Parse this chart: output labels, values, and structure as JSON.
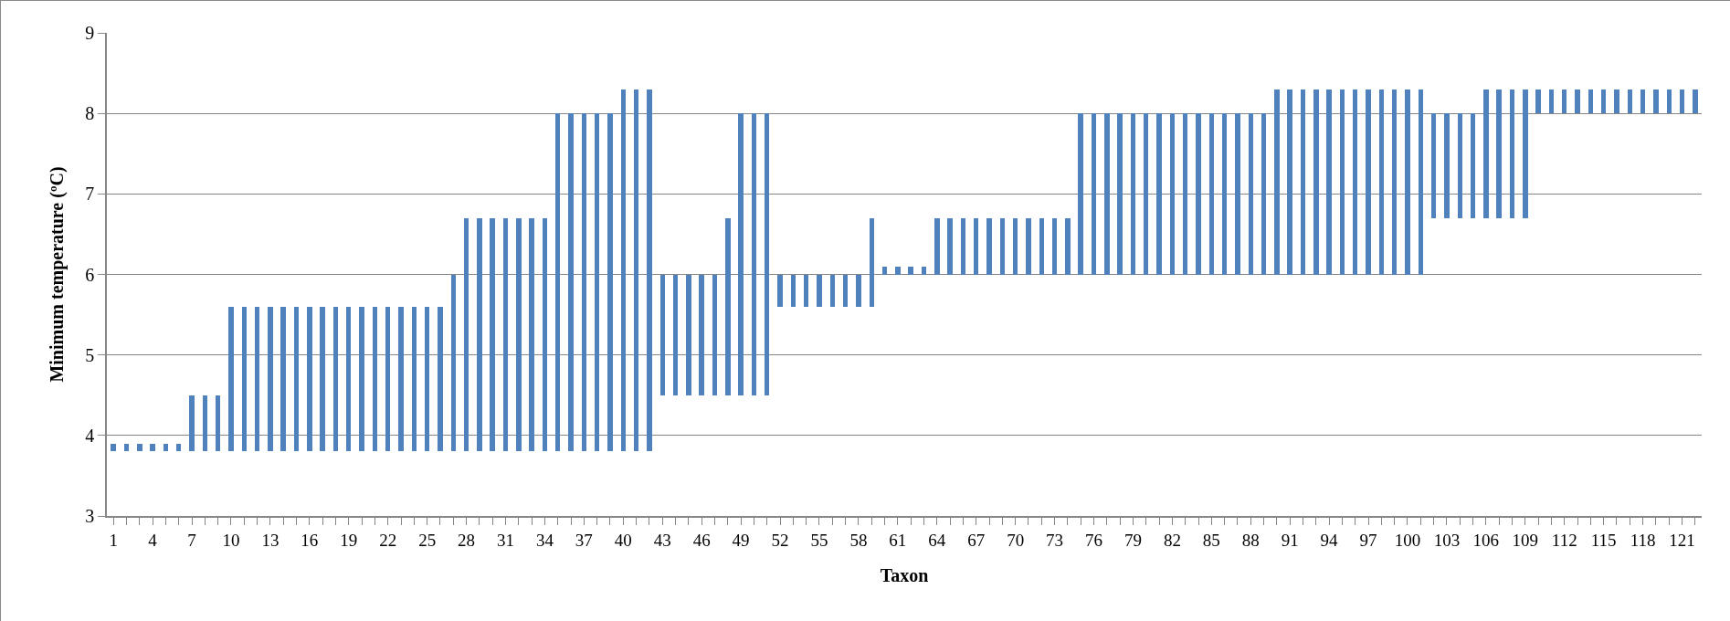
{
  "chart_data": {
    "type": "bar",
    "xlabel": "Taxon",
    "ylabel": "Minimum temperature (ºC)",
    "categories": [
      "1",
      null,
      null,
      "4",
      null,
      null,
      "7",
      null,
      null,
      "10",
      null,
      null,
      "13",
      null,
      null,
      "16",
      null,
      null,
      "19",
      null,
      null,
      "22",
      null,
      null,
      "25",
      null,
      null,
      "28",
      null,
      null,
      "31",
      null,
      null,
      "34",
      null,
      null,
      "37",
      null,
      null,
      "40",
      null,
      null,
      "43",
      null,
      null,
      "46",
      null,
      null,
      "49",
      null,
      null,
      "52",
      null,
      null,
      "55",
      null,
      null,
      "58",
      null,
      null,
      "61",
      null,
      null,
      "64",
      null,
      null,
      "67",
      null,
      null,
      "70",
      null,
      null,
      "73",
      null,
      null,
      "76",
      null,
      null,
      "79",
      null,
      null,
      "82",
      null,
      null,
      "85",
      null,
      null,
      "88",
      null,
      null,
      "91",
      null,
      null,
      "94",
      null,
      null,
      "97",
      null,
      null,
      "100",
      null,
      null,
      "103",
      null,
      null,
      "106",
      null,
      null,
      "109",
      null,
      null,
      "112",
      null,
      null,
      "115",
      null,
      null,
      "118",
      null,
      null,
      "121",
      null
    ],
    "base": [
      3.8,
      3.8,
      3.8,
      3.8,
      3.8,
      3.8,
      3.8,
      3.8,
      3.8,
      3.8,
      3.8,
      3.8,
      3.8,
      3.8,
      3.8,
      3.8,
      3.8,
      3.8,
      3.8,
      3.8,
      3.8,
      3.8,
      3.8,
      3.8,
      3.8,
      3.8,
      3.8,
      3.8,
      3.8,
      3.8,
      3.8,
      3.8,
      3.8,
      3.8,
      3.8,
      3.8,
      3.8,
      3.8,
      3.8,
      3.8,
      3.8,
      3.8,
      4.5,
      4.5,
      4.5,
      4.5,
      4.5,
      4.5,
      4.5,
      4.5,
      4.5,
      5.6,
      5.6,
      5.6,
      5.6,
      5.6,
      5.6,
      5.6,
      5.6,
      6.0,
      6.0,
      6.0,
      6.0,
      6.0,
      6.0,
      6.0,
      6.0,
      6.0,
      6.0,
      6.0,
      6.0,
      6.0,
      6.0,
      6.0,
      6.0,
      6.0,
      6.0,
      6.0,
      6.0,
      6.0,
      6.0,
      6.0,
      6.0,
      6.0,
      6.0,
      6.0,
      6.0,
      6.0,
      6.0,
      6.0,
      6.0,
      6.0,
      6.0,
      6.0,
      6.0,
      6.0,
      6.0,
      6.0,
      6.0,
      6.0,
      6.0,
      6.7,
      6.7,
      6.7,
      6.7,
      6.7,
      6.7,
      6.7,
      6.7,
      8.0,
      8.0,
      8.0,
      8.0,
      8.0,
      8.0,
      8.0,
      8.0,
      8.0,
      8.0,
      8.0,
      8.0,
      8.0
    ],
    "values": [
      0.1,
      0.1,
      0.1,
      0.1,
      0.1,
      0.1,
      0.7,
      0.7,
      0.7,
      1.8,
      1.8,
      1.8,
      1.8,
      1.8,
      1.8,
      1.8,
      1.8,
      1.8,
      1.8,
      1.8,
      1.8,
      1.8,
      1.8,
      1.8,
      1.8,
      1.8,
      2.2,
      2.9,
      2.9,
      2.9,
      2.9,
      2.9,
      2.9,
      2.9,
      4.2,
      4.2,
      4.2,
      4.2,
      4.2,
      4.5,
      4.5,
      4.5,
      1.5,
      1.5,
      1.5,
      1.5,
      1.5,
      2.2,
      3.5,
      3.5,
      3.5,
      0.4,
      0.4,
      0.4,
      0.4,
      0.4,
      0.4,
      0.4,
      1.1,
      0.1,
      0.1,
      0.1,
      0.1,
      0.7,
      0.7,
      0.7,
      0.7,
      0.7,
      0.7,
      0.7,
      0.7,
      0.7,
      0.7,
      0.7,
      2.0,
      2.0,
      2.0,
      2.0,
      2.0,
      2.0,
      2.0,
      2.0,
      2.0,
      2.0,
      2.0,
      2.0,
      2.0,
      2.0,
      2.0,
      2.3,
      2.3,
      2.3,
      2.3,
      2.3,
      2.3,
      2.3,
      2.3,
      2.3,
      2.3,
      2.3,
      2.3,
      1.3,
      1.3,
      1.3,
      1.3,
      1.6,
      1.6,
      1.6,
      1.6,
      0.3,
      0.3,
      0.3,
      0.3,
      0.3,
      0.3,
      0.3,
      0.3,
      0.3,
      0.3,
      0.3,
      0.3,
      0.3
    ],
    "color": "#4f81bd",
    "ylim": [
      3,
      9
    ],
    "yticks": [
      3,
      4,
      5,
      6,
      7,
      8,
      9
    ],
    "grid": "y"
  }
}
